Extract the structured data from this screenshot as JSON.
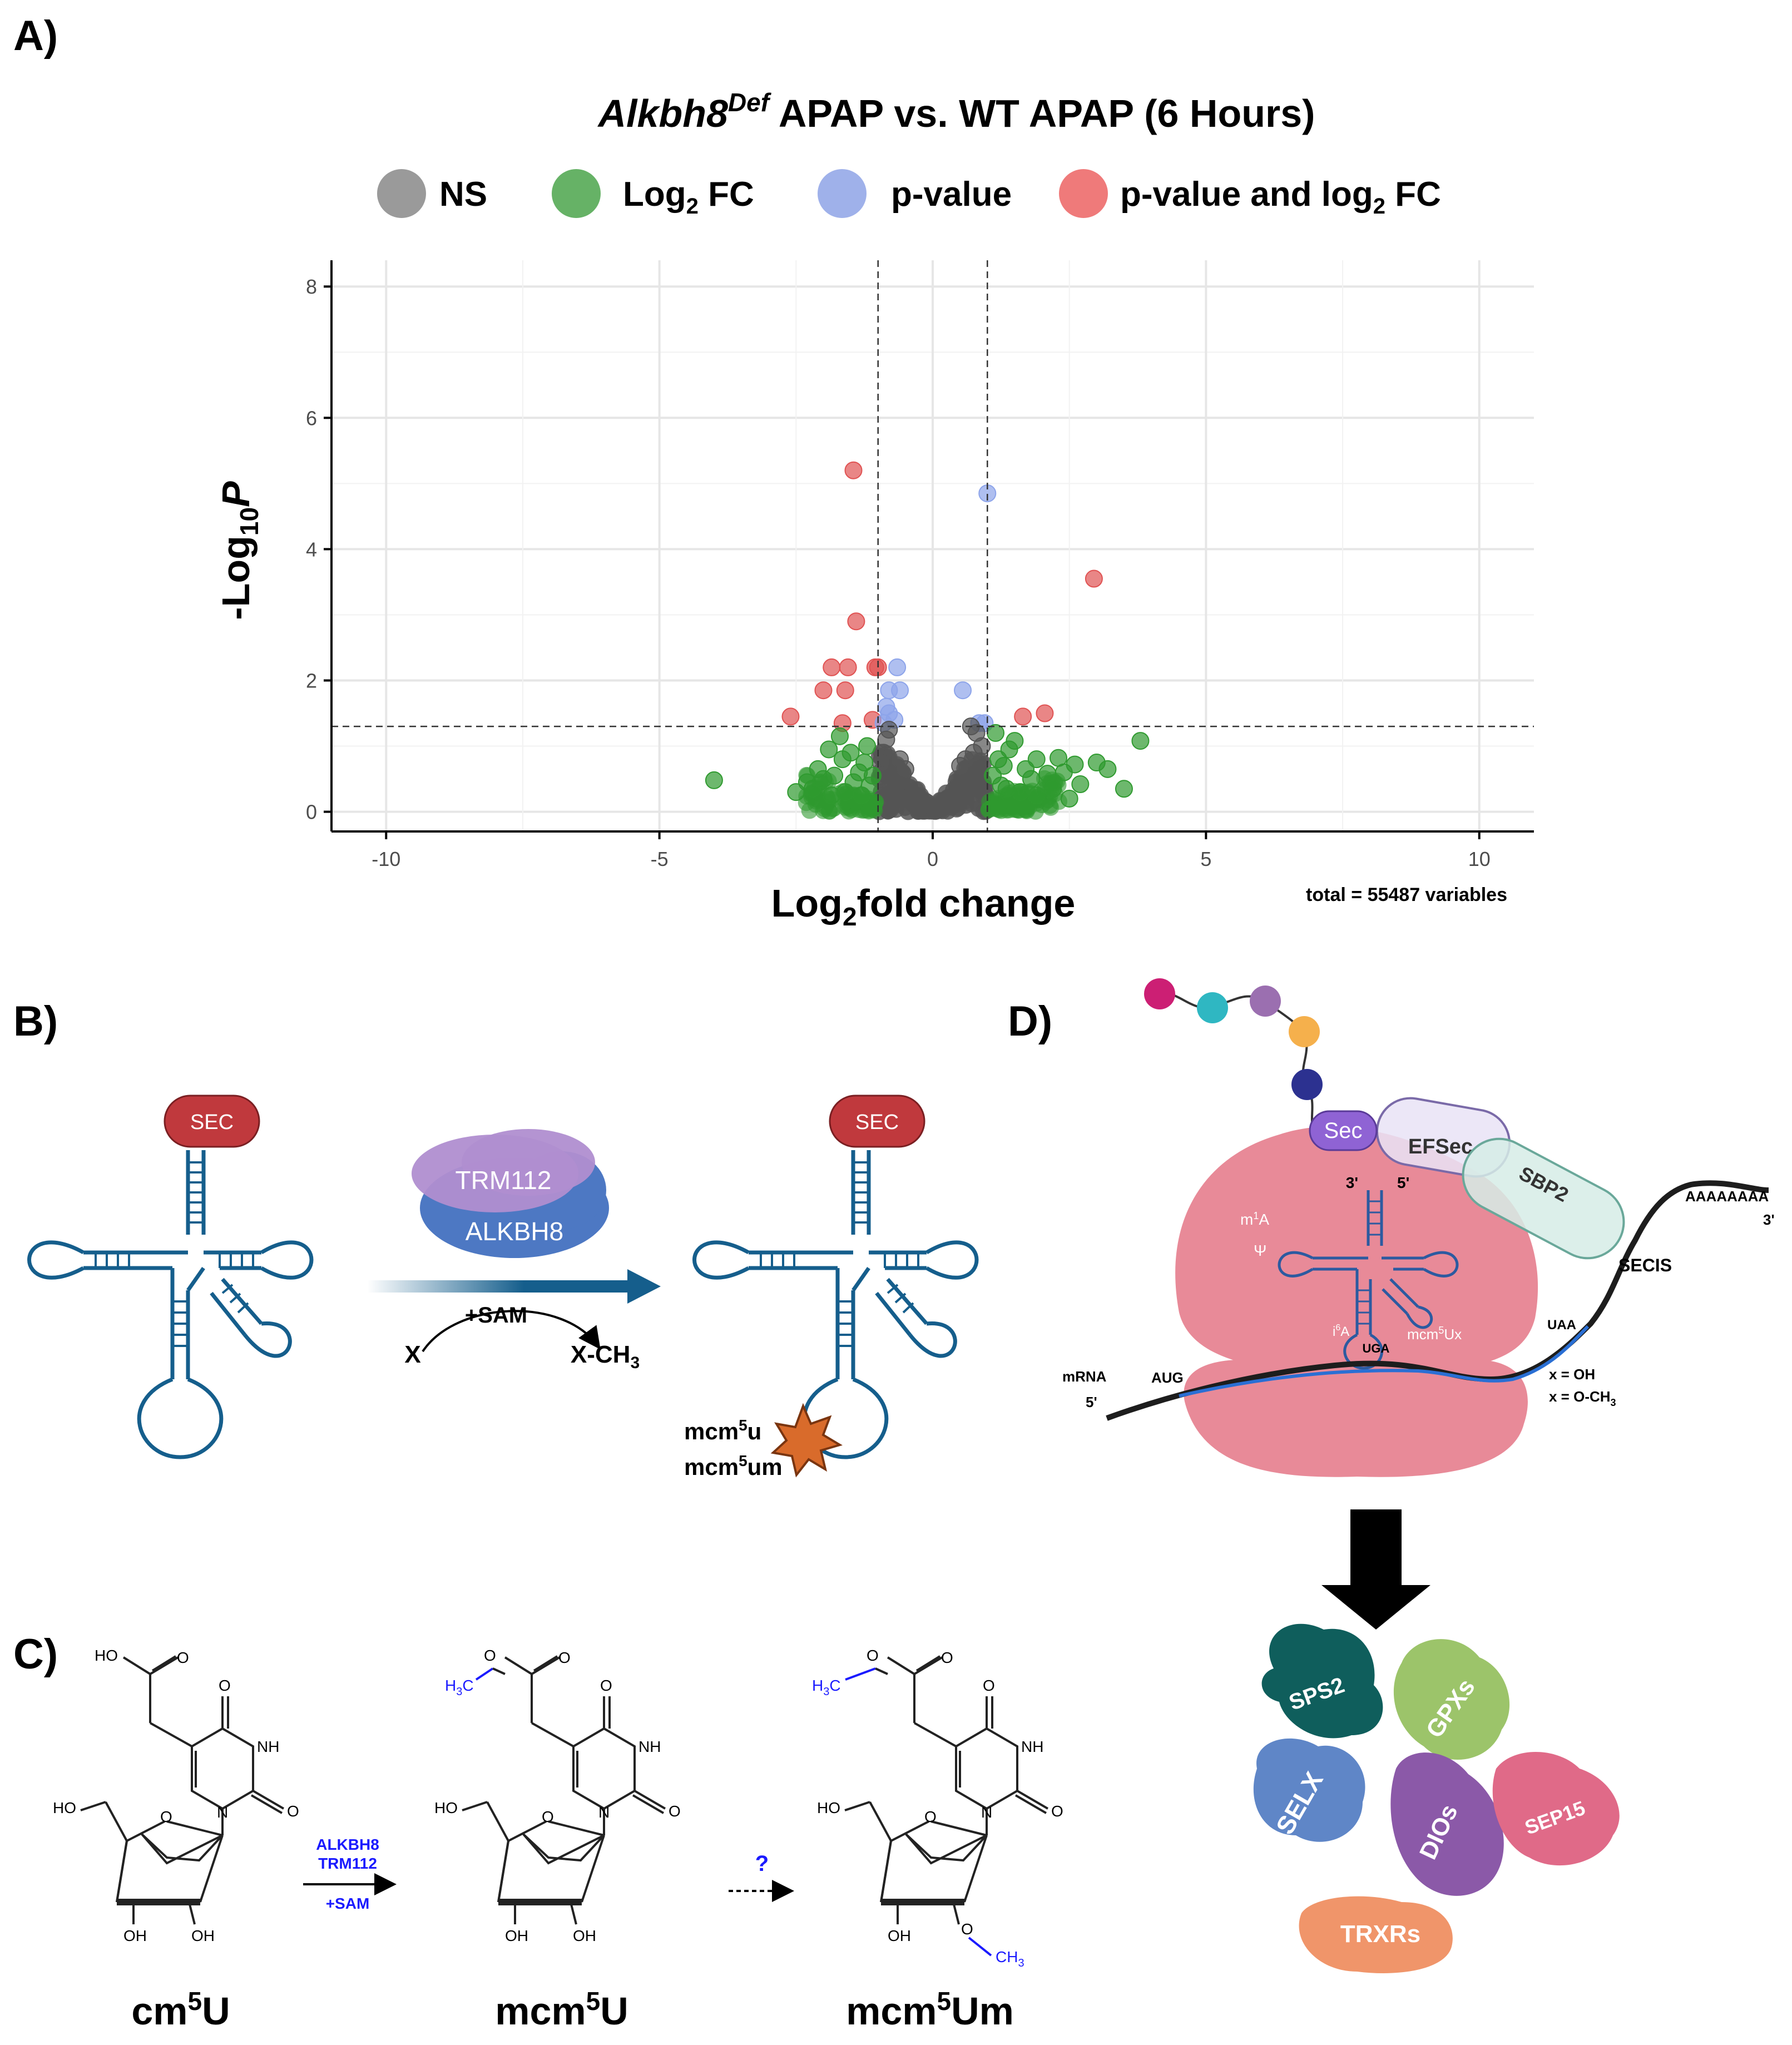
{
  "panels": {
    "a": "A)",
    "b": "B)",
    "c": "C)",
    "d": "D)"
  },
  "chart_data": {
    "type": "scatter",
    "title": {
      "gene": "Alkbh8",
      "sup": "Def",
      "rest": " APAP vs. WT APAP (6 Hours)"
    },
    "xlabel": {
      "pre": "Log",
      "sub": "2",
      "post": "fold change"
    },
    "ylabel": {
      "pre": "-Log",
      "sub": "10",
      "post": "P"
    },
    "xlim": [
      -11,
      11
    ],
    "ylim": [
      -0.3,
      8.4
    ],
    "x_ticks": [
      -10,
      -5,
      0,
      5,
      10
    ],
    "x_tick_labels": [
      "-10",
      "-5",
      "0",
      "5",
      "10"
    ],
    "y_ticks": [
      0,
      2,
      4,
      6,
      8
    ],
    "y_tick_labels": [
      "0",
      "2",
      "4",
      "6",
      "8"
    ],
    "fc_cutoff": 1,
    "p_cutoff_log": 1.3,
    "total_note": "total = 55487 variables",
    "legend": [
      {
        "key": "ns",
        "label": "NS",
        "color": "#9a9a9a"
      },
      {
        "key": "fc",
        "label": "Log",
        "sub": "2",
        "label_post": " FC",
        "color": "#66b266"
      },
      {
        "key": "p",
        "label": "p-value",
        "color": "#9fb1ea"
      },
      {
        "key": "both",
        "label": "p-value and log",
        "sub": "2",
        "label_post": " FC",
        "color": "#ef7a7a"
      }
    ],
    "series": [
      {
        "name": "p-value and log2 FC",
        "color": "#e05252",
        "points": [
          [
            -1.45,
            5.2
          ],
          [
            2.95,
            3.55
          ],
          [
            -1.4,
            2.9
          ],
          [
            -1.85,
            2.2
          ],
          [
            -1.55,
            2.2
          ],
          [
            -1.05,
            2.2
          ],
          [
            -1.0,
            2.2
          ],
          [
            -2.0,
            1.85
          ],
          [
            -1.6,
            1.85
          ],
          [
            -2.6,
            1.45
          ],
          [
            -1.1,
            1.4
          ],
          [
            -1.65,
            1.35
          ],
          [
            2.05,
            1.5
          ],
          [
            1.65,
            1.45
          ]
        ]
      },
      {
        "name": "p-value",
        "color": "#8da4ea",
        "points": [
          [
            1.0,
            4.85
          ],
          [
            -0.65,
            2.2
          ],
          [
            -0.8,
            1.85
          ],
          [
            -0.6,
            1.85
          ],
          [
            0.55,
            1.85
          ],
          [
            -0.85,
            1.6
          ],
          [
            -0.8,
            1.5
          ],
          [
            -0.7,
            1.4
          ],
          [
            0.85,
            1.35
          ],
          [
            0.95,
            1.35
          ],
          [
            -0.9,
            1.35
          ]
        ]
      },
      {
        "name": "NS",
        "color": "#555555",
        "points": [
          [
            0.7,
            1.3
          ],
          [
            0.8,
            1.2
          ],
          [
            -0.8,
            1.25
          ],
          [
            0.9,
            1.0
          ],
          [
            -0.85,
            1.1
          ],
          [
            0.75,
            0.9
          ],
          [
            -0.9,
            0.9
          ],
          [
            -0.6,
            0.8
          ],
          [
            0.6,
            0.8
          ],
          [
            -0.95,
            0.75
          ],
          [
            0.5,
            0.7
          ],
          [
            -0.5,
            0.65
          ]
        ]
      },
      {
        "name": "Log2 FC",
        "color": "#2f9a2f",
        "points": [
          [
            -4.0,
            0.48
          ],
          [
            3.8,
            1.08
          ],
          [
            3.2,
            0.65
          ],
          [
            3.5,
            0.35
          ],
          [
            3.0,
            0.75
          ],
          [
            2.6,
            0.72
          ],
          [
            2.4,
            0.6
          ],
          [
            2.3,
            0.82
          ],
          [
            2.7,
            0.42
          ],
          [
            2.5,
            0.2
          ],
          [
            2.2,
            0.35
          ],
          [
            2.1,
            0.58
          ],
          [
            1.9,
            0.8
          ],
          [
            1.8,
            0.5
          ],
          [
            1.7,
            0.65
          ],
          [
            1.5,
            1.08
          ],
          [
            1.4,
            0.95
          ],
          [
            1.3,
            0.7
          ],
          [
            1.2,
            0.8
          ],
          [
            1.15,
            1.2
          ],
          [
            1.1,
            0.55
          ],
          [
            1.6,
            0.3
          ],
          [
            1.9,
            0.25
          ],
          [
            1.35,
            0.35
          ],
          [
            1.25,
            0.4
          ],
          [
            -2.3,
            0.45
          ],
          [
            -2.2,
            0.35
          ],
          [
            -2.1,
            0.65
          ],
          [
            -2.0,
            0.5
          ],
          [
            -1.9,
            0.95
          ],
          [
            -1.8,
            0.55
          ],
          [
            -1.7,
            1.15
          ],
          [
            -1.65,
            0.8
          ],
          [
            -1.5,
            0.9
          ],
          [
            -1.45,
            0.45
          ],
          [
            -1.35,
            0.6
          ],
          [
            -1.25,
            0.75
          ],
          [
            -1.2,
            1.0
          ],
          [
            -1.15,
            0.4
          ],
          [
            -1.1,
            0.55
          ],
          [
            -2.5,
            0.3
          ],
          [
            -1.6,
            0.3
          ],
          [
            -1.3,
            0.25
          ],
          [
            -1.85,
            0.25
          ]
        ]
      }
    ]
  },
  "panel_b": {
    "sec_left": "SEC",
    "sec_right": "SEC",
    "trm112": "TRM112",
    "alkbh8": "ALKBH8",
    "sam": "+SAM",
    "x": "X",
    "xch3": {
      "pre": "X-CH",
      "sub": "3"
    },
    "mod1": {
      "pre": "mcm",
      "sup": "5",
      "post": "u"
    },
    "mod2": {
      "pre": "mcm",
      "sup": "5",
      "post": "um"
    }
  },
  "panel_c": {
    "enz1": "ALKBH8",
    "enz2": "TRM112",
    "sam": "+SAM",
    "q": "?",
    "cm5u": {
      "pre": "cm",
      "sup": "5",
      "post": "U"
    },
    "mcm5u": {
      "pre": "mcm",
      "sup": "5",
      "post": "U"
    },
    "mcm5um": {
      "pre": "mcm",
      "sup": "5",
      "post": "Um"
    },
    "ho_acid": "HO",
    "o": "O",
    "nh": "NH",
    "n": "N",
    "ho": "HO",
    "oh": "OH",
    "h3c": {
      "pre": "H",
      "sub": "3",
      "post": "C"
    },
    "ch3": {
      "pre": "CH",
      "sub": "3"
    }
  },
  "panel_d": {
    "sec": "Sec",
    "efsec": "EFSec",
    "sbp2": "SBP2",
    "poly_a": "AAAAAAAA",
    "three_prime": "3'",
    "five_prime": "5'",
    "secis": "SECIS",
    "mrna": "mRNA",
    "aug": "AUG",
    "uga": "UGA",
    "uaa": "UAA",
    "m1a": {
      "pre": "m",
      "sup": "1",
      "post": "A"
    },
    "psi": "Ψ",
    "i6a": {
      "pre": "i",
      "sup": "6",
      "post": "A"
    },
    "mcm5ux": {
      "pre": "mcm",
      "sup": "5",
      "post": "Ux"
    },
    "x_oh": "x = OH",
    "x_och3": {
      "pre": "x = O-CH",
      "sub": "3"
    },
    "proteins": [
      "SPS2",
      "GPXs",
      "SELX",
      "DIOs",
      "SEP15",
      "TRXRs"
    ],
    "peptide_colors": [
      "#cc1f74",
      "#2fb7c2",
      "#9b6fb0",
      "#f5b04c",
      "#2c3190"
    ]
  }
}
